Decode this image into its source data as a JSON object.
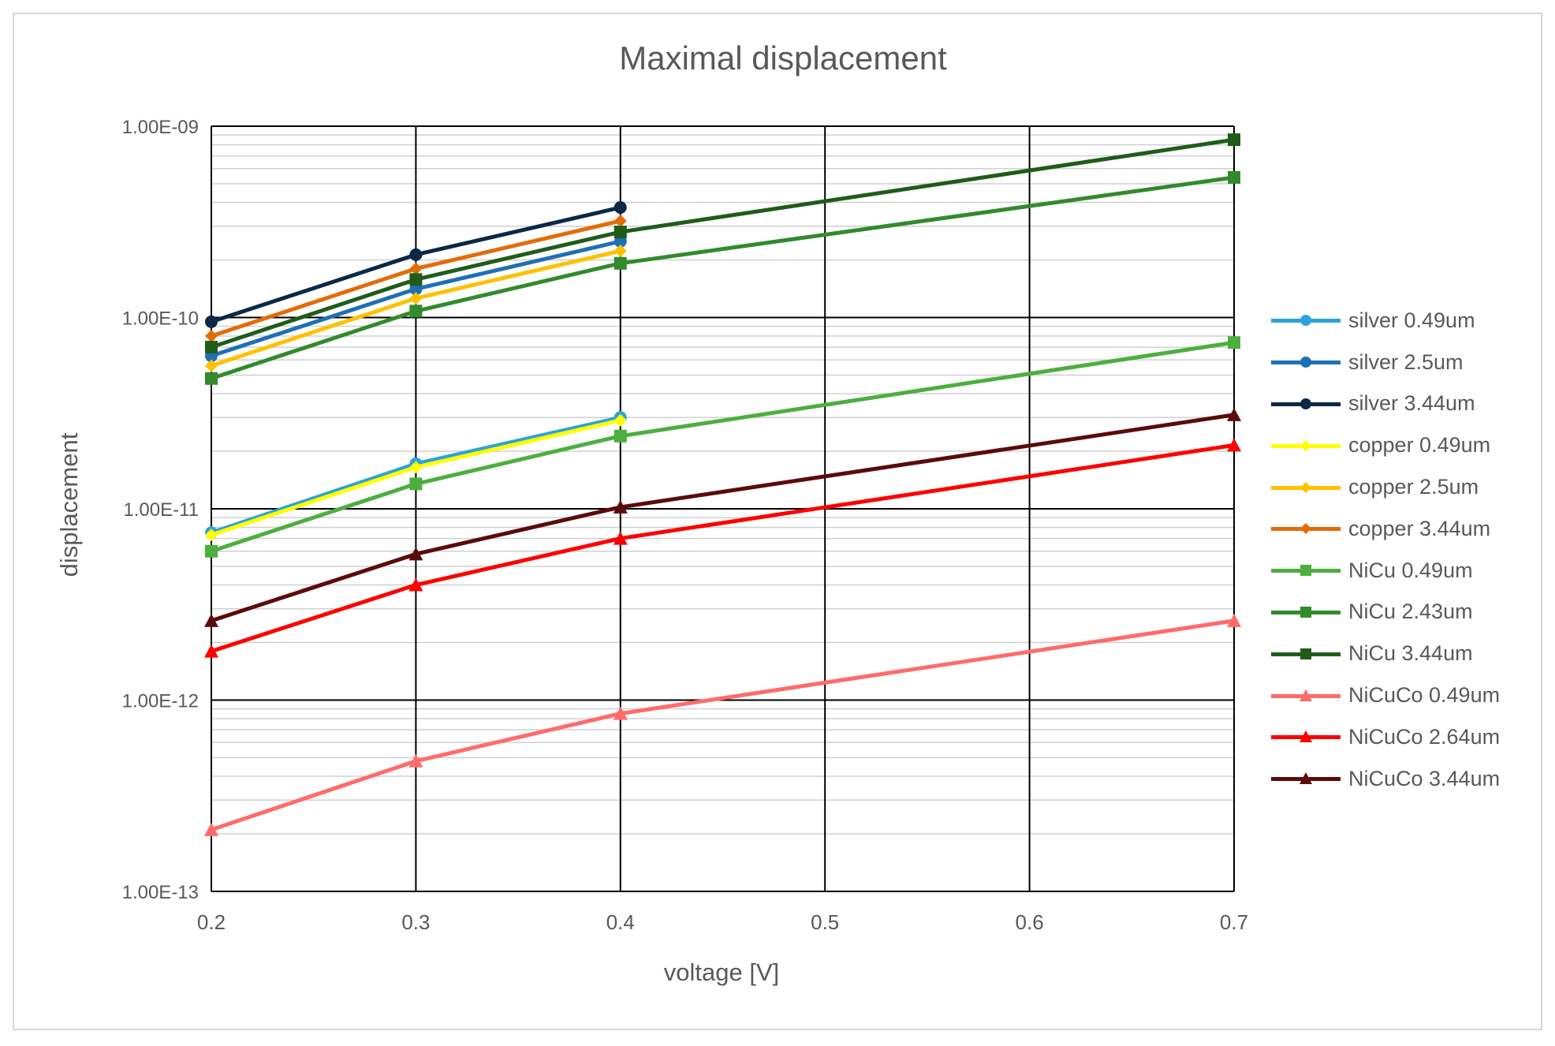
{
  "chart_data": {
    "type": "line",
    "title": "Maximal displacement",
    "xlabel": "voltage [V]",
    "ylabel": "displacement",
    "yscale": "log",
    "xlim": [
      0.2,
      0.7
    ],
    "ylim": [
      1e-13,
      1e-09
    ],
    "grid": true,
    "legend_position": "right",
    "xticks": [
      0.2,
      0.3,
      0.4,
      0.5,
      0.6,
      0.7
    ],
    "xtick_labels": [
      "0.2",
      "0.3",
      "0.4",
      "0.5",
      "0.6",
      "0.7"
    ],
    "yticks": [
      1e-09,
      1e-10,
      1e-11,
      1e-12,
      1e-13
    ],
    "ytick_labels": [
      "1.00E-09",
      "1.00E-10",
      "1.00E-11",
      "1.00E-12",
      "1.00E-13"
    ],
    "series": [
      {
        "name": "silver 0.49um",
        "color": "#2aa3dc",
        "marker": "circle",
        "x": [
          0.2,
          0.3,
          0.4
        ],
        "values": [
          7.5e-12,
          1.72e-11,
          3e-11
        ]
      },
      {
        "name": "silver 2.5um",
        "color": "#1f6fb5",
        "marker": "circle",
        "x": [
          0.2,
          0.3,
          0.4
        ],
        "values": [
          6.3e-11,
          1.41e-10,
          2.5e-10
        ]
      },
      {
        "name": "silver 3.44um",
        "color": "#0b2847",
        "marker": "circle",
        "x": [
          0.2,
          0.3,
          0.4
        ],
        "values": [
          9.5e-11,
          2.13e-10,
          3.76e-10
        ]
      },
      {
        "name": "copper 0.49um",
        "color": "#ffff00",
        "marker": "diamond",
        "x": [
          0.2,
          0.3,
          0.4
        ],
        "values": [
          7.3e-12,
          1.65e-11,
          2.9e-11
        ]
      },
      {
        "name": "copper 2.5um",
        "color": "#ffc000",
        "marker": "diamond",
        "x": [
          0.2,
          0.3,
          0.4
        ],
        "values": [
          5.6e-11,
          1.26e-10,
          2.23e-10
        ]
      },
      {
        "name": "copper 3.44um",
        "color": "#e36c0a",
        "marker": "diamond",
        "x": [
          0.2,
          0.3,
          0.4
        ],
        "values": [
          8e-11,
          1.8e-10,
          3.2e-10
        ]
      },
      {
        "name": "NiCu 0.49um",
        "color": "#4caf3e",
        "marker": "square",
        "x": [
          0.2,
          0.3,
          0.4,
          0.7
        ],
        "values": [
          6e-12,
          1.35e-11,
          2.4e-11,
          7.4e-11
        ]
      },
      {
        "name": "NiCu 2.43um",
        "color": "#338a2e",
        "marker": "square",
        "x": [
          0.2,
          0.3,
          0.4,
          0.7
        ],
        "values": [
          4.8e-11,
          1.08e-10,
          1.92e-10,
          5.4e-10
        ]
      },
      {
        "name": "NiCu 3.44um",
        "color": "#1f5c1a",
        "marker": "square",
        "x": [
          0.2,
          0.3,
          0.4,
          0.7
        ],
        "values": [
          7e-11,
          1.58e-10,
          2.8e-10,
          8.5e-10
        ]
      },
      {
        "name": "NiCuCo 0.49um",
        "color": "#ff6b6b",
        "marker": "triangle",
        "x": [
          0.2,
          0.3,
          0.4,
          0.7
        ],
        "values": [
          2.1e-13,
          4.8e-13,
          8.5e-13,
          2.6e-12
        ]
      },
      {
        "name": "NiCuCo 2.64um",
        "color": "#ff0000",
        "marker": "triangle",
        "x": [
          0.2,
          0.3,
          0.4,
          0.7
        ],
        "values": [
          1.8e-12,
          4e-12,
          7e-12,
          2.15e-11
        ]
      },
      {
        "name": "NiCuCo 3.44um",
        "color": "#5c0a0a",
        "marker": "triangle",
        "x": [
          0.2,
          0.3,
          0.4,
          0.7
        ],
        "values": [
          2.6e-12,
          5.8e-12,
          1.02e-11,
          3.1e-11
        ]
      }
    ]
  }
}
